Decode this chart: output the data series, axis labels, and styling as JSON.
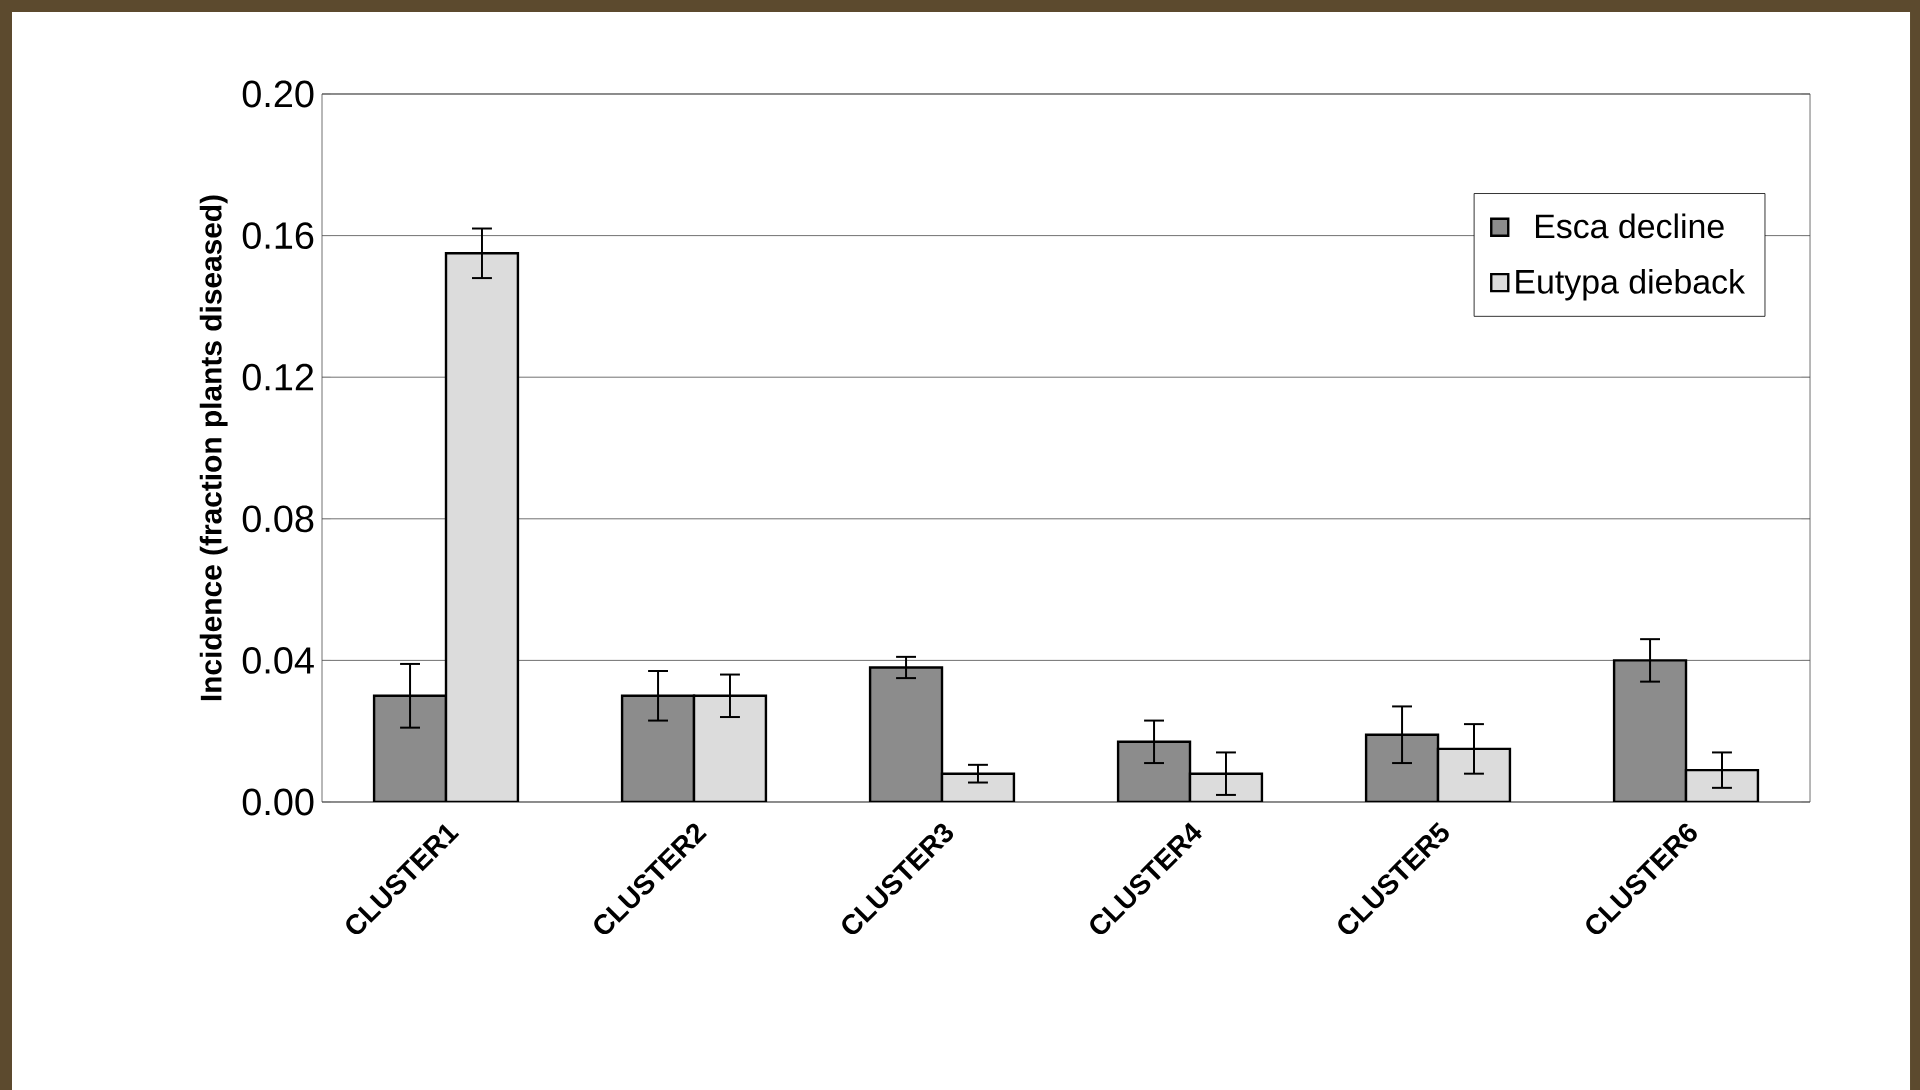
{
  "chart_data": {
    "type": "bar",
    "ylabel": "Incidence (fraction plants diseased)",
    "categories": [
      "CLUSTER1",
      "CLUSTER2",
      "CLUSTER3",
      "CLUSTER4",
      "CLUSTER5",
      "CLUSTER6"
    ],
    "series": [
      {
        "name": "Esca decline",
        "color": "#8c8c8c",
        "values": [
          0.03,
          0.03,
          0.038,
          0.017,
          0.019,
          0.04
        ],
        "errors": [
          0.009,
          0.007,
          0.003,
          0.006,
          0.008,
          0.006
        ]
      },
      {
        "name": "Eutypa dieback",
        "color": "#dcdcdc",
        "values": [
          0.155,
          0.03,
          0.008,
          0.008,
          0.015,
          0.009
        ],
        "errors": [
          0.007,
          0.006,
          0.0025,
          0.006,
          0.007,
          0.005
        ]
      }
    ],
    "ylim": [
      0,
      0.2
    ],
    "yticks": [
      {
        "value": 0,
        "label": "0.00"
      },
      {
        "value": 0.04,
        "label": "0.04"
      },
      {
        "value": 0.08,
        "label": "0.08"
      },
      {
        "value": 0.12,
        "label": "0.12"
      },
      {
        "value": 0.16,
        "label": "0.16"
      },
      {
        "value": 0.2,
        "label": "0.20"
      }
    ],
    "grid": "y",
    "legend": "top right"
  }
}
